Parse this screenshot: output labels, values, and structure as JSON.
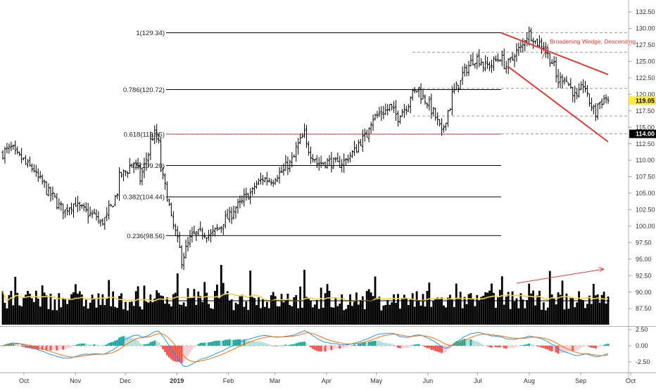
{
  "chart_data": {
    "type": "candlestick",
    "price_axis": {
      "ticks": [
        "132.50",
        "130.00",
        "127.50",
        "125.00",
        "122.50",
        "120.00",
        "117.50",
        "115.00",
        "112.50",
        "110.00",
        "107.50",
        "105.00",
        "102.50",
        "100.00",
        "97.50",
        "95.00",
        "92.50",
        "90.00",
        "87.50"
      ],
      "ylim": [
        85.0,
        133.5
      ]
    },
    "macd_axis": {
      "ticks": [
        "2.50",
        "0.00",
        "-2.50"
      ],
      "ylim": [
        -4.2,
        3.0
      ]
    },
    "time_axis": {
      "labels": [
        "Oct",
        "Nov",
        "Dec",
        "2019",
        "Feb",
        "Mar",
        "Apr",
        "May",
        "Jun",
        "Jul",
        "Aug",
        "Sep",
        "Oct"
      ],
      "label_dates": [
        "2018-10-01",
        "2018-11-01",
        "2018-12-01",
        "2019-01-01",
        "2019-02-01",
        "2019-03-01",
        "2019-04-01",
        "2019-05-01",
        "2019-06-01",
        "2019-07-01",
        "2019-08-01",
        "2019-09-01",
        "2019-10-01"
      ],
      "start": "2018-09-14",
      "end": "2019-09-13"
    },
    "price_badges": [
      {
        "text": "119.05",
        "value": 119.05,
        "bg": "#ffeb3b",
        "fg": "#000000"
      },
      {
        "text": "114.00",
        "value": 114.0,
        "bg": "#000000",
        "fg": "#ffffff"
      }
    ],
    "fib_levels": [
      {
        "label": "1(129.34)",
        "value": 129.34,
        "color": "#000000"
      },
      {
        "label": "0.786(120.72)",
        "value": 120.72,
        "color": "#000000"
      },
      {
        "label": "0.618(113.95)",
        "value": 113.95,
        "color": "#e53935"
      },
      {
        "label": "0.5(109.20)",
        "value": 109.2,
        "color": "#000000"
      },
      {
        "label": "0.382(104.44)",
        "value": 104.44,
        "color": "#000000"
      },
      {
        "label": "0.236(98.56)",
        "value": 98.56,
        "color": "#000000"
      }
    ],
    "horizontal_dashed_levels": [
      129.34,
      126.4,
      120.9,
      116.7,
      114.0
    ],
    "wedge": {
      "label": "Broadening Wedge, Descending",
      "color": "#e53935",
      "upper": [
        [
          "2019-07-15",
          129.34
        ],
        [
          "2019-09-13",
          123.0
        ]
      ],
      "lower": [
        [
          "2019-07-15",
          124.2
        ],
        [
          "2019-09-13",
          112.8
        ]
      ],
      "label_anchor": [
        "2019-08-05",
        128.0
      ]
    },
    "volume_arrow": {
      "from": [
        "2019-07-25",
        "low"
      ],
      "to": [
        "2019-09-13",
        "high"
      ],
      "color": "#e53935"
    },
    "price_path": [
      [
        "2018-09-14",
        111.0
      ],
      [
        "2018-09-20",
        111.8
      ],
      [
        "2018-09-28",
        110.0
      ],
      [
        "2018-10-05",
        108.6
      ],
      [
        "2018-10-12",
        106.3
      ],
      [
        "2018-10-19",
        104.2
      ],
      [
        "2018-10-26",
        102.3
      ],
      [
        "2018-11-02",
        103.5
      ],
      [
        "2018-11-09",
        102.2
      ],
      [
        "2018-11-16",
        101.5
      ],
      [
        "2018-11-20",
        100.4
      ],
      [
        "2018-11-27",
        102.8
      ],
      [
        "2018-12-03",
        107.5
      ],
      [
        "2018-12-07",
        108.5
      ],
      [
        "2018-12-12",
        109.6
      ],
      [
        "2018-12-17",
        107.0
      ],
      [
        "2018-12-20",
        110.2
      ],
      [
        "2018-12-23",
        112.5
      ],
      [
        "2018-12-26",
        114.0
      ],
      [
        "2018-12-28",
        112.5
      ],
      [
        "2019-01-02",
        106.0
      ],
      [
        "2019-01-04",
        103.0
      ],
      [
        "2019-01-07",
        101.0
      ],
      [
        "2019-01-09",
        99.0
      ],
      [
        "2019-01-11",
        96.5
      ],
      [
        "2019-01-14",
        94.8
      ],
      [
        "2019-01-16",
        96.5
      ],
      [
        "2019-01-18",
        98.0
      ],
      [
        "2019-01-23",
        98.8
      ],
      [
        "2019-01-28",
        99.0
      ],
      [
        "2019-02-02",
        98.5
      ],
      [
        "2019-02-08",
        100.0
      ],
      [
        "2019-02-15",
        101.8
      ],
      [
        "2019-02-22",
        103.6
      ],
      [
        "2019-03-01",
        105.2
      ],
      [
        "2019-03-08",
        107.2
      ],
      [
        "2019-03-15",
        107.0
      ],
      [
        "2019-03-22",
        108.4
      ],
      [
        "2019-03-27",
        109.5
      ],
      [
        "2019-04-01",
        111.8
      ],
      [
        "2019-04-05",
        114.0
      ],
      [
        "2019-04-10",
        111.0
      ],
      [
        "2019-04-15",
        109.5
      ],
      [
        "2019-04-22",
        109.8
      ],
      [
        "2019-04-29",
        109.3
      ],
      [
        "2019-05-06",
        110.5
      ],
      [
        "2019-05-12",
        112.3
      ],
      [
        "2019-05-17",
        113.8
      ],
      [
        "2019-05-22",
        116.5
      ],
      [
        "2019-05-28",
        117.2
      ],
      [
        "2019-06-03",
        118.2
      ],
      [
        "2019-06-07",
        116.5
      ],
      [
        "2019-06-12",
        117.8
      ],
      [
        "2019-06-17",
        119.8
      ],
      [
        "2019-06-21",
        120.9
      ],
      [
        "2019-06-25",
        119.5
      ],
      [
        "2019-06-28",
        118.5
      ],
      [
        "2019-07-02",
        117.3
      ],
      [
        "2019-07-05",
        115.0
      ],
      [
        "2019-07-08",
        114.0
      ],
      [
        "2019-07-11",
        117.5
      ],
      [
        "2019-07-14",
        119.5
      ],
      [
        "2019-07-18",
        121.5
      ],
      [
        "2019-07-22",
        123.0
      ],
      [
        "2019-07-26",
        124.8
      ],
      [
        "2019-07-31",
        125.5
      ],
      [
        "2019-08-05",
        124.3
      ],
      [
        "2019-08-10",
        124.5
      ],
      [
        "2019-08-15",
        125.6
      ],
      [
        "2019-08-20",
        124.3
      ],
      [
        "2019-08-24",
        125.8
      ],
      [
        "2019-08-29",
        127.0
      ],
      [
        "2019-09-01",
        128.2
      ],
      [
        "2019-09-04",
        129.2
      ],
      [
        "2019-09-08",
        128.1
      ],
      [
        "2019-09-12",
        127.6
      ],
      [
        "2019-09-16",
        126.5
      ],
      [
        "2019-09-20",
        124.3
      ],
      [
        "2019-09-24",
        122.0
      ],
      [
        "2019-09-28",
        123.0
      ],
      [
        "2019-10-02",
        121.0
      ],
      [
        "2019-10-06",
        118.6
      ],
      [
        "2019-10-10",
        121.5
      ],
      [
        "2019-10-14",
        119.5
      ],
      [
        "2019-10-18",
        117.0
      ],
      [
        "2019-10-21",
        118.5
      ],
      [
        "2019-10-25",
        119.5
      ],
      [
        "2019-10-28",
        119.05
      ]
    ]
  }
}
